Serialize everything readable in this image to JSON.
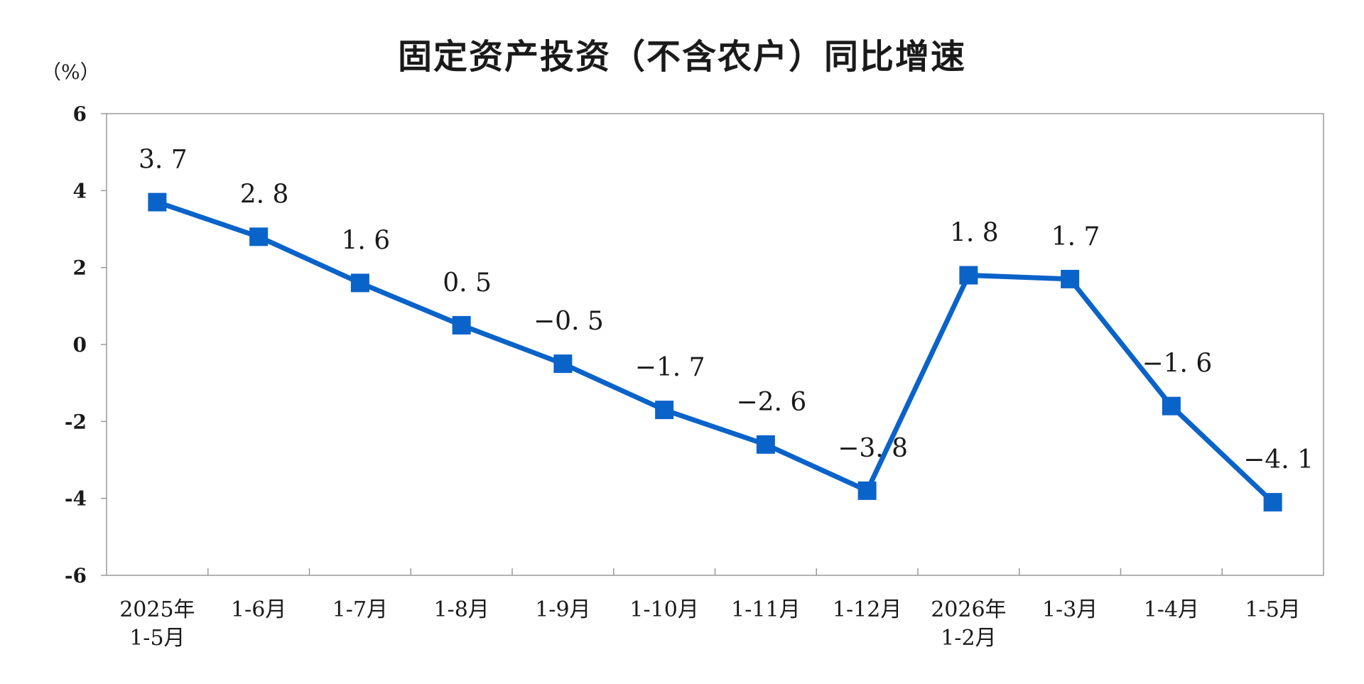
{
  "chart_data": {
    "type": "line",
    "title": "固定资产投资（不含农户）同比增速",
    "unit_label": "（%）",
    "categories": [
      [
        "2025年",
        "1-5月"
      ],
      [
        "1-6月"
      ],
      [
        "1-7月"
      ],
      [
        "1-8月"
      ],
      [
        "1-9月"
      ],
      [
        "1-10月"
      ],
      [
        "1-11月"
      ],
      [
        "1-12月"
      ],
      [
        "2026年",
        "1-2月"
      ],
      [
        "1-3月"
      ],
      [
        "1-4月"
      ],
      [
        "1-5月"
      ]
    ],
    "series": [
      {
        "values": [
          3.7,
          2.8,
          1.6,
          0.5,
          -0.5,
          -1.7,
          -2.6,
          -3.8,
          1.8,
          1.7,
          -1.6,
          -4.1
        ],
        "data_labels": [
          "3. 7",
          "2. 8",
          "1. 6",
          "0. 5",
          "−0. 5",
          "−1. 7",
          "−2. 6",
          "−3. 8",
          "1. 8",
          "1. 7",
          "−1. 6",
          "−4. 1"
        ],
        "color": "#0a63c9"
      }
    ],
    "ylim": [
      -6,
      6
    ],
    "yticks": [
      "6",
      "4",
      "2",
      "0",
      "-2",
      "-4",
      "-6"
    ],
    "ytick_values": [
      6,
      4,
      2,
      0,
      -2,
      -4,
      -6
    ],
    "grid": false,
    "legend": "none"
  }
}
